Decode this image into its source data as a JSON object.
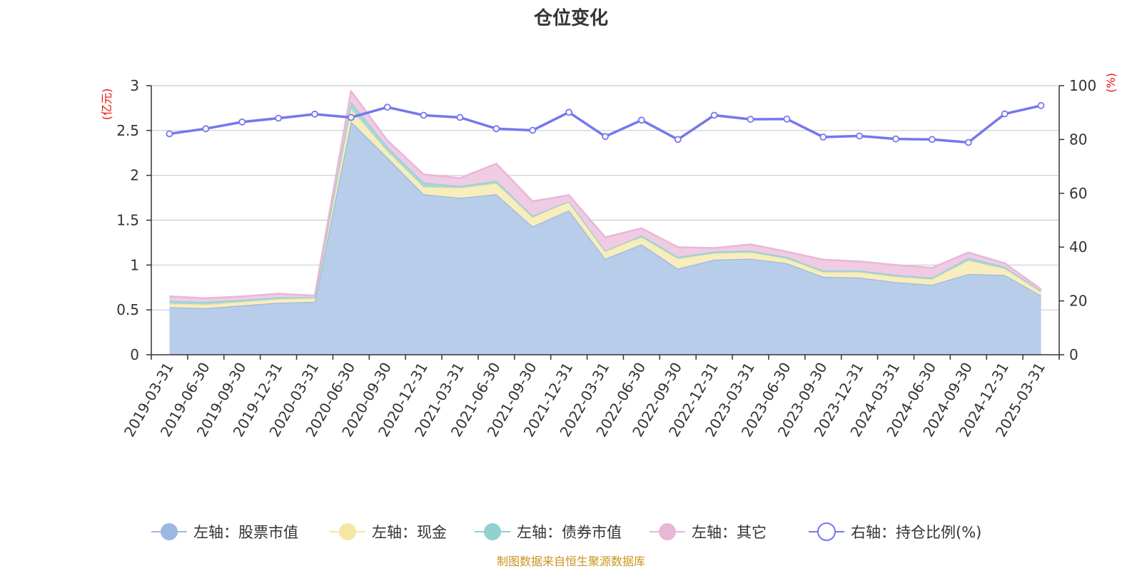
{
  "chart_data": {
    "type": "area",
    "title": "仓位变化",
    "categories": [
      "2019-03-31",
      "2019-06-30",
      "2019-09-30",
      "2019-12-31",
      "2020-03-31",
      "2020-06-30",
      "2020-09-30",
      "2020-12-31",
      "2021-03-31",
      "2021-06-30",
      "2021-09-30",
      "2021-12-31",
      "2022-03-31",
      "2022-06-30",
      "2022-09-30",
      "2022-12-31",
      "2023-03-31",
      "2023-06-30",
      "2023-09-30",
      "2023-12-31",
      "2024-03-31",
      "2024-06-30",
      "2024-09-30",
      "2024-12-31",
      "2025-03-31"
    ],
    "left_axis": {
      "unit": "(亿元)",
      "ylim": [
        0,
        3
      ],
      "ticks": [
        "0",
        "0.5",
        "1",
        "1.5",
        "2",
        "2.5",
        "3"
      ]
    },
    "right_axis": {
      "unit": "(%)",
      "ylim": [
        0,
        100
      ],
      "ticks": [
        "0",
        "20",
        "40",
        "60",
        "80",
        "100"
      ]
    },
    "grid": true,
    "legend_position": "bottom",
    "series": [
      {
        "name": "左轴：股票市值",
        "axis": "left",
        "stack": true,
        "color": "#9db8e0",
        "fill": "#b8cdea",
        "values": [
          0.53,
          0.52,
          0.55,
          0.58,
          0.59,
          2.6,
          2.2,
          1.79,
          1.75,
          1.79,
          1.43,
          1.61,
          1.07,
          1.23,
          0.96,
          1.06,
          1.07,
          1.02,
          0.87,
          0.86,
          0.81,
          0.78,
          0.9,
          0.89,
          0.66
        ]
      },
      {
        "name": "左轴：现金",
        "axis": "left",
        "stack": true,
        "color": "#f5e6a6",
        "fill": "#f8edbc",
        "values": [
          0.04,
          0.04,
          0.04,
          0.04,
          0.04,
          0.14,
          0.07,
          0.08,
          0.11,
          0.12,
          0.1,
          0.1,
          0.09,
          0.08,
          0.11,
          0.07,
          0.07,
          0.05,
          0.05,
          0.06,
          0.06,
          0.06,
          0.15,
          0.07,
          0.04
        ]
      },
      {
        "name": "左轴：债券市值",
        "axis": "left",
        "stack": true,
        "color": "#93d0d0",
        "fill": "#a6d8d8",
        "values": [
          0.03,
          0.03,
          0.02,
          0.02,
          0.01,
          0.08,
          0.05,
          0.05,
          0.02,
          0.03,
          0.02,
          0.0,
          0.0,
          0.02,
          0.02,
          0.02,
          0.02,
          0.02,
          0.02,
          0.02,
          0.02,
          0.02,
          0.03,
          0.02,
          0.01
        ]
      },
      {
        "name": "左轴：其它",
        "axis": "left",
        "stack": true,
        "color": "#e8b7d8",
        "fill": "#efcce4",
        "values": [
          0.05,
          0.04,
          0.04,
          0.04,
          0.02,
          0.12,
          0.07,
          0.09,
          0.09,
          0.19,
          0.16,
          0.07,
          0.15,
          0.08,
          0.11,
          0.04,
          0.07,
          0.06,
          0.12,
          0.1,
          0.11,
          0.11,
          0.06,
          0.04,
          0.02
        ]
      },
      {
        "name": "右轴：持仓比例(%)",
        "axis": "right",
        "type": "line",
        "color": "#7577ee",
        "values": [
          82.1,
          84.0,
          86.5,
          87.9,
          89.4,
          88.2,
          92.0,
          89.0,
          88.2,
          84.0,
          83.4,
          90.1,
          81.1,
          87.2,
          80.0,
          89.0,
          87.5,
          87.6,
          80.9,
          81.3,
          80.2,
          80.0,
          78.9,
          89.5,
          92.6
        ]
      }
    ]
  },
  "footer": {
    "source": "制图数据来自恒生聚源数据库",
    "source_color": "#c9951f"
  },
  "colors": {
    "axis_unit": "#e8100b",
    "axis_line": "#333333",
    "grid": "#cccccc"
  }
}
